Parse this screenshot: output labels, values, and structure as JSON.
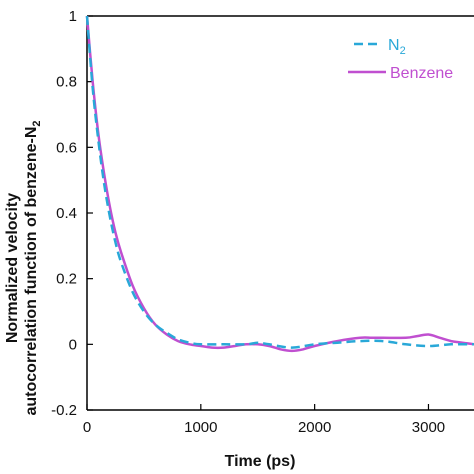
{
  "chart_data": {
    "type": "line",
    "xlabel": "Time (ps)",
    "ylabel_line1": "Normalized velocity",
    "ylabel_line2_main": "autocorrelation function of benzene-N",
    "ylabel_line2_sub": "2",
    "xlim": [
      0,
      3400
    ],
    "ylim": [
      -0.2,
      1
    ],
    "xticks": [
      "0",
      "1000",
      "2000",
      "3000"
    ],
    "yticks": [
      "-0.2",
      "0",
      "0.2",
      "0.4",
      "0.6",
      "0.8",
      "1"
    ],
    "xtick_values": [
      0,
      1000,
      2000,
      3000
    ],
    "ytick_values": [
      -0.2,
      0,
      0.2,
      0.4,
      0.6,
      0.8,
      1
    ],
    "legend_position": "top-right",
    "series": [
      {
        "name": "N",
        "name_sub": "2",
        "color": "#29a8d8",
        "dash": true,
        "x": [
          0,
          50,
          100,
          150,
          200,
          250,
          300,
          400,
          500,
          600,
          700,
          800,
          900,
          1000,
          1200,
          1400,
          1500,
          1600,
          1800,
          2000,
          2200,
          2400,
          2600,
          2800,
          3000,
          3200,
          3400
        ],
        "y": [
          1.0,
          0.78,
          0.62,
          0.49,
          0.39,
          0.31,
          0.25,
          0.16,
          0.1,
          0.06,
          0.035,
          0.015,
          0.005,
          0.0,
          0.0,
          0.0,
          0.005,
          0.0,
          -0.01,
          0.0,
          0.005,
          0.01,
          0.01,
          0.0,
          -0.005,
          0.0,
          0.0
        ]
      },
      {
        "name": "Benzene",
        "color": "#c04fd0",
        "dash": false,
        "x": [
          0,
          50,
          100,
          150,
          200,
          250,
          300,
          400,
          500,
          600,
          700,
          800,
          900,
          1000,
          1100,
          1200,
          1300,
          1400,
          1500,
          1600,
          1700,
          1800,
          1900,
          2000,
          2200,
          2400,
          2500,
          2600,
          2800,
          2900,
          3000,
          3100,
          3200,
          3300,
          3400
        ],
        "y": [
          1.0,
          0.8,
          0.64,
          0.52,
          0.42,
          0.34,
          0.28,
          0.18,
          0.11,
          0.06,
          0.03,
          0.01,
          0.0,
          -0.005,
          -0.01,
          -0.01,
          -0.005,
          0.0,
          0.0,
          -0.005,
          -0.015,
          -0.02,
          -0.015,
          -0.005,
          0.01,
          0.02,
          0.02,
          0.02,
          0.02,
          0.025,
          0.03,
          0.02,
          0.01,
          0.005,
          0.0
        ]
      }
    ]
  }
}
